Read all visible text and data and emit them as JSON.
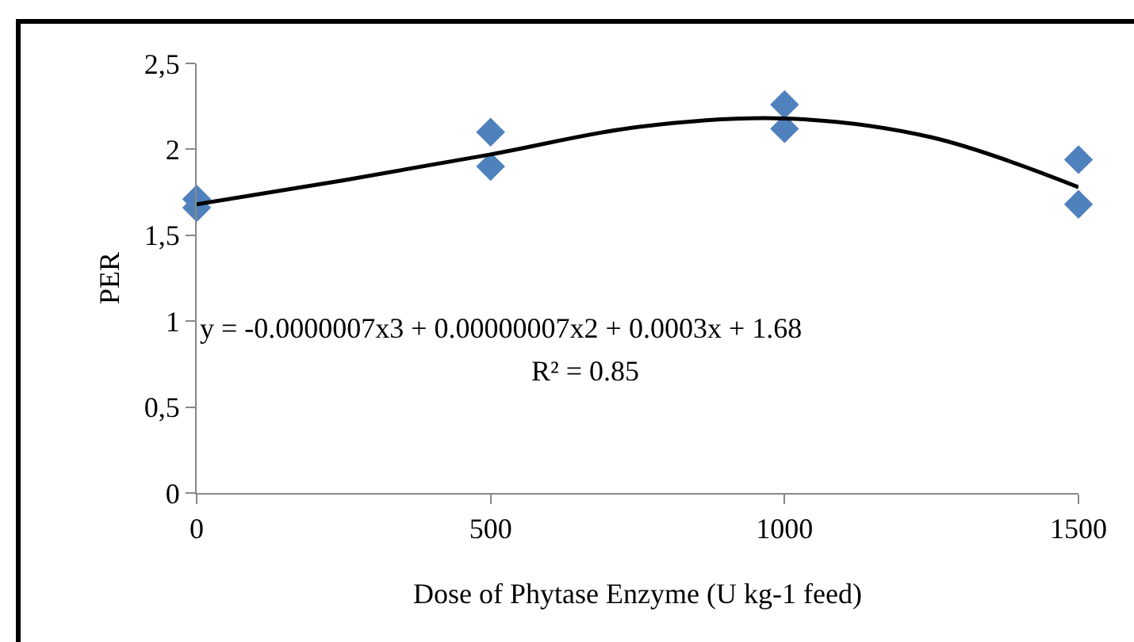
{
  "chart_data": {
    "type": "scatter",
    "xlabel": "Dose of Phytase Enzyme (U kg-1 feed)",
    "ylabel": "PER",
    "series": [
      {
        "color": "#4f81bd",
        "marker": "diamond",
        "x": [
          0,
          0,
          500,
          500,
          1000,
          1000,
          1500,
          1500
        ],
        "values": [
          1.71,
          1.66,
          2.1,
          1.9,
          2.26,
          2.12,
          1.94,
          1.68
        ]
      },
      {
        "type": "line",
        "color": "#000000",
        "marker": "none",
        "x": [
          0,
          250,
          500,
          750,
          1000,
          1250,
          1500
        ],
        "values": [
          1.68,
          1.82,
          1.97,
          2.13,
          2.18,
          2.07,
          1.78
        ]
      }
    ],
    "xlim": [
      0,
      1500
    ],
    "xticks": [
      0,
      500,
      1000,
      1500
    ],
    "ylim": [
      0,
      2.5
    ],
    "yticks": [
      {
        "value": 0,
        "label": "0"
      },
      {
        "value": 0.5,
        "label": "0,5"
      },
      {
        "value": 1,
        "label": "1"
      },
      {
        "value": 1.5,
        "label": "1,5"
      },
      {
        "value": 2,
        "label": "2"
      },
      {
        "value": 2.5,
        "label": "2,5"
      }
    ],
    "grid": false,
    "legend": false,
    "annotations": [
      "y = -0.0000007x3 + 0.00000007x2 + 0.0003x + 1.68",
      "R² = 0.85"
    ]
  }
}
